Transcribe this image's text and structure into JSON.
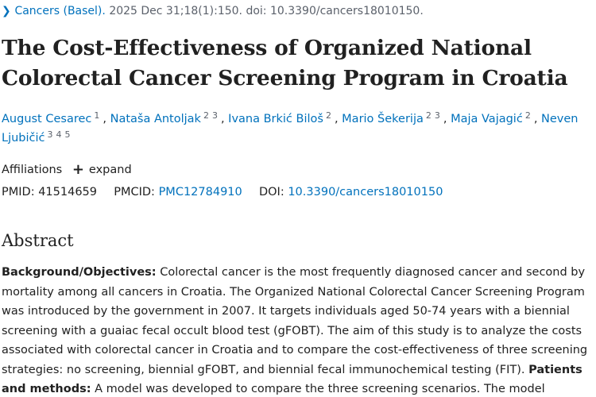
{
  "citation": {
    "journal": "Cancers (Basel).",
    "rest": "2025 Dec 31;18(1):150. doi: 10.3390/cancers18010150."
  },
  "title": "The Cost-Effectiveness of Organized National Colorectal Cancer Screening Program in Croatia",
  "authors": [
    {
      "name": "August Cesarec",
      "affs": [
        "1"
      ]
    },
    {
      "name": "Nataša Antoljak",
      "affs": [
        "2",
        "3"
      ]
    },
    {
      "name": "Ivana Brkić Biloš",
      "affs": [
        "2"
      ]
    },
    {
      "name": "Mario Šekerija",
      "affs": [
        "2",
        "3"
      ]
    },
    {
      "name": "Maja Vajagić",
      "affs": [
        "2"
      ]
    },
    {
      "name": "Neven Ljubičić",
      "affs": [
        "3",
        "4",
        "5"
      ]
    }
  ],
  "affiliations": {
    "label": "Affiliations",
    "expand_label": "expand"
  },
  "identifiers": {
    "pmid_label": "PMID:",
    "pmid": "41514659",
    "pmcid_label": "PMCID:",
    "pmcid": "PMC12784910",
    "doi_label": "DOI:",
    "doi": "10.3390/cancers18010150"
  },
  "abstract": {
    "heading": "Abstract",
    "bg_label": "Background/Objectives:",
    "bg_text": " Colorectal cancer is the most frequently diagnosed cancer and second by mortality among all cancers in Croatia. The Organized National Colorectal Cancer Screening Program was introduced by the government in 2007. It targets individuals aged 50-74 years with a biennial screening with a guaiac fecal occult blood test (gFOBT). The aim of this study is to analyze the costs associated with colorectal cancer in Croatia and to compare the cost-effectiveness of three screening strategies: no screening, biennial gFOBT, and biennial fecal immunochemical testing (FIT). ",
    "pm_label": "Patients and methods:",
    "pm_text": " A model was developed to compare the three screening scenarios. The model"
  },
  "colors": {
    "link": "#0071bc",
    "text": "#212121",
    "muted": "#5b616b"
  }
}
